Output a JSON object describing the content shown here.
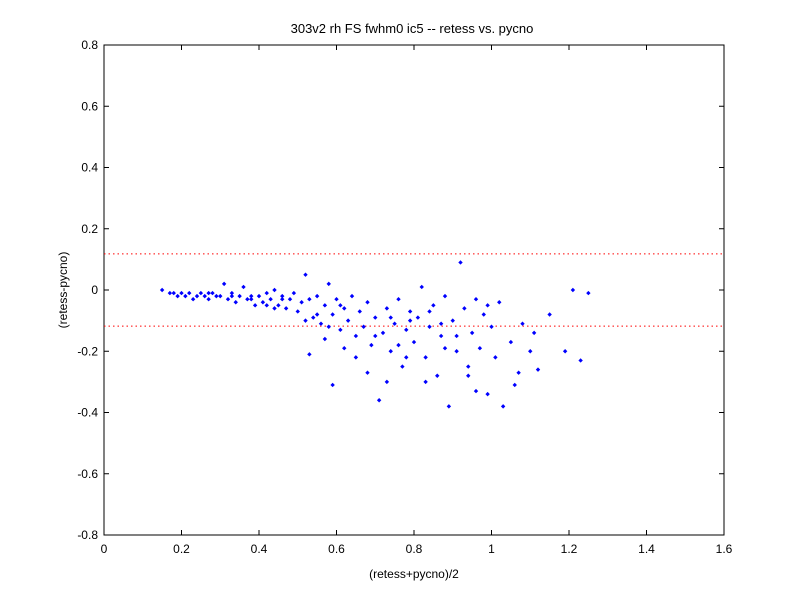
{
  "chart_data": {
    "type": "scatter",
    "title": "303v2 rh FS fwhm0 ic5 -- retess vs. pycno",
    "xlabel": "(retess+pycno)/2",
    "ylabel": "(retess-pycno)",
    "xlim": [
      0,
      1.6
    ],
    "ylim": [
      -0.8,
      0.8
    ],
    "xticks": [
      "0",
      "0.2",
      "0.4",
      "0.6",
      "0.8",
      "1",
      "1.2",
      "1.4",
      "1.6"
    ],
    "yticks": [
      "0.8",
      "0.6",
      "0.4",
      "0.2",
      "0",
      "-0.2",
      "-0.4",
      "-0.6",
      "-0.8"
    ],
    "grid": false,
    "marker_color": "#0000ff",
    "reference_lines": [
      {
        "y": 0.118,
        "color": "#ff0000",
        "style": "dotted"
      },
      {
        "y": -0.118,
        "color": "#ff0000",
        "style": "dotted"
      }
    ],
    "series": [
      {
        "points": [
          [
            0.15,
            0.0
          ],
          [
            0.17,
            -0.01
          ],
          [
            0.18,
            -0.01
          ],
          [
            0.19,
            -0.02
          ],
          [
            0.2,
            -0.01
          ],
          [
            0.21,
            -0.02
          ],
          [
            0.22,
            -0.01
          ],
          [
            0.23,
            -0.03
          ],
          [
            0.24,
            -0.02
          ],
          [
            0.25,
            -0.01
          ],
          [
            0.26,
            -0.02
          ],
          [
            0.27,
            -0.03
          ],
          [
            0.28,
            -0.01
          ],
          [
            0.29,
            -0.02
          ],
          [
            0.3,
            -0.02
          ],
          [
            0.31,
            0.02
          ],
          [
            0.32,
            -0.03
          ],
          [
            0.33,
            -0.01
          ],
          [
            0.34,
            -0.04
          ],
          [
            0.35,
            -0.02
          ],
          [
            0.36,
            0.01
          ],
          [
            0.37,
            -0.03
          ],
          [
            0.38,
            -0.02
          ],
          [
            0.39,
            -0.05
          ],
          [
            0.4,
            -0.02
          ],
          [
            0.41,
            -0.04
          ],
          [
            0.42,
            -0.01
          ],
          [
            0.43,
            -0.03
          ],
          [
            0.44,
            0.0
          ],
          [
            0.45,
            -0.05
          ],
          [
            0.46,
            -0.02
          ],
          [
            0.47,
            -0.06
          ],
          [
            0.48,
            -0.03
          ],
          [
            0.49,
            -0.01
          ],
          [
            0.5,
            -0.07
          ],
          [
            0.51,
            -0.04
          ],
          [
            0.52,
            0.05
          ],
          [
            0.53,
            -0.03
          ],
          [
            0.54,
            -0.09
          ],
          [
            0.55,
            -0.02
          ],
          [
            0.56,
            -0.11
          ],
          [
            0.57,
            -0.05
          ],
          [
            0.58,
            0.02
          ],
          [
            0.59,
            -0.08
          ],
          [
            0.6,
            -0.03
          ],
          [
            0.61,
            -0.13
          ],
          [
            0.62,
            -0.06
          ],
          [
            0.63,
            -0.1
          ],
          [
            0.64,
            -0.02
          ],
          [
            0.65,
            -0.15
          ],
          [
            0.66,
            -0.07
          ],
          [
            0.67,
            -0.12
          ],
          [
            0.68,
            -0.04
          ],
          [
            0.69,
            -0.18
          ],
          [
            0.7,
            -0.09
          ],
          [
            0.71,
            -0.36
          ],
          [
            0.72,
            -0.14
          ],
          [
            0.73,
            -0.06
          ],
          [
            0.74,
            -0.2
          ],
          [
            0.75,
            -0.11
          ],
          [
            0.76,
            -0.03
          ],
          [
            0.77,
            -0.25
          ],
          [
            0.78,
            -0.13
          ],
          [
            0.79,
            -0.07
          ],
          [
            0.8,
            -0.17
          ],
          [
            0.81,
            -0.09
          ],
          [
            0.82,
            0.01
          ],
          [
            0.83,
            -0.22
          ],
          [
            0.84,
            -0.12
          ],
          [
            0.85,
            -0.05
          ],
          [
            0.86,
            -0.28
          ],
          [
            0.87,
            -0.15
          ],
          [
            0.88,
            -0.02
          ],
          [
            0.89,
            -0.38
          ],
          [
            0.9,
            -0.1
          ],
          [
            0.91,
            -0.2
          ],
          [
            0.92,
            0.09
          ],
          [
            0.93,
            -0.06
          ],
          [
            0.94,
            -0.25
          ],
          [
            0.95,
            -0.14
          ],
          [
            0.96,
            -0.03
          ],
          [
            0.97,
            -0.19
          ],
          [
            0.98,
            -0.08
          ],
          [
            0.99,
            -0.34
          ],
          [
            1.0,
            -0.12
          ],
          [
            1.01,
            -0.22
          ],
          [
            1.02,
            -0.04
          ],
          [
            1.03,
            -0.38
          ],
          [
            1.05,
            -0.17
          ],
          [
            1.06,
            -0.31
          ],
          [
            1.08,
            -0.11
          ],
          [
            1.1,
            -0.2
          ],
          [
            1.12,
            -0.26
          ],
          [
            1.15,
            -0.08
          ],
          [
            1.19,
            -0.2
          ],
          [
            1.21,
            0.0
          ],
          [
            1.23,
            -0.23
          ],
          [
            1.25,
            -0.01
          ],
          [
            0.59,
            -0.31
          ],
          [
            0.53,
            -0.21
          ],
          [
            0.83,
            -0.3
          ],
          [
            0.96,
            -0.33
          ],
          [
            0.62,
            -0.19
          ],
          [
            0.78,
            -0.22
          ],
          [
            0.94,
            -0.28
          ],
          [
            0.68,
            -0.27
          ],
          [
            0.73,
            -0.3
          ],
          [
            0.57,
            -0.16
          ],
          [
            0.88,
            -0.19
          ],
          [
            0.65,
            -0.22
          ],
          [
            0.46,
            -0.03
          ],
          [
            0.33,
            -0.02
          ],
          [
            0.27,
            -0.01
          ],
          [
            0.55,
            -0.08
          ],
          [
            0.61,
            -0.05
          ],
          [
            0.74,
            -0.09
          ],
          [
            0.79,
            -0.1
          ],
          [
            0.84,
            -0.07
          ],
          [
            0.91,
            -0.15
          ],
          [
            0.99,
            -0.05
          ],
          [
            1.07,
            -0.27
          ],
          [
            1.11,
            -0.14
          ],
          [
            0.7,
            -0.15
          ],
          [
            0.76,
            -0.18
          ],
          [
            0.87,
            -0.11
          ],
          [
            0.52,
            -0.1
          ],
          [
            0.58,
            -0.12
          ],
          [
            0.44,
            -0.06
          ],
          [
            0.38,
            -0.03
          ],
          [
            0.42,
            -0.05
          ]
        ]
      }
    ]
  }
}
